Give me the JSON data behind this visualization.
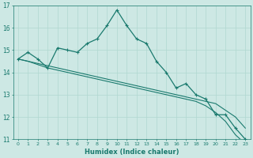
{
  "xlabel": "Humidex (Indice chaleur)",
  "background_color": "#cde8e4",
  "line_color": "#1a7a6e",
  "grid_color": "#b0d8d0",
  "x_ticks": [
    0,
    1,
    2,
    3,
    4,
    5,
    6,
    7,
    8,
    9,
    10,
    11,
    12,
    13,
    14,
    15,
    16,
    17,
    18,
    19,
    20,
    21,
    22,
    23
  ],
  "ylim": [
    11,
    17
  ],
  "yticks": [
    11,
    12,
    13,
    14,
    15,
    16,
    17
  ],
  "line1": [
    14.6,
    14.9,
    14.6,
    14.2,
    15.1,
    15.0,
    14.9,
    15.3,
    15.5,
    16.1,
    16.8,
    16.1,
    15.5,
    15.3,
    14.5,
    14.0,
    13.3,
    13.5,
    13.0,
    12.8,
    12.1,
    12.1,
    11.5,
    11.0
  ],
  "line2": [
    14.6,
    14.5,
    14.4,
    14.3,
    14.2,
    14.1,
    14.0,
    13.9,
    13.8,
    13.7,
    13.6,
    13.5,
    13.4,
    13.3,
    13.2,
    13.1,
    13.0,
    12.9,
    12.8,
    12.7,
    12.6,
    12.3,
    12.0,
    11.5
  ],
  "line3": [
    14.6,
    14.5,
    14.35,
    14.2,
    14.1,
    14.0,
    13.9,
    13.8,
    13.7,
    13.6,
    13.5,
    13.4,
    13.3,
    13.2,
    13.1,
    13.0,
    12.9,
    12.8,
    12.7,
    12.5,
    12.2,
    11.8,
    11.2,
    10.8
  ]
}
